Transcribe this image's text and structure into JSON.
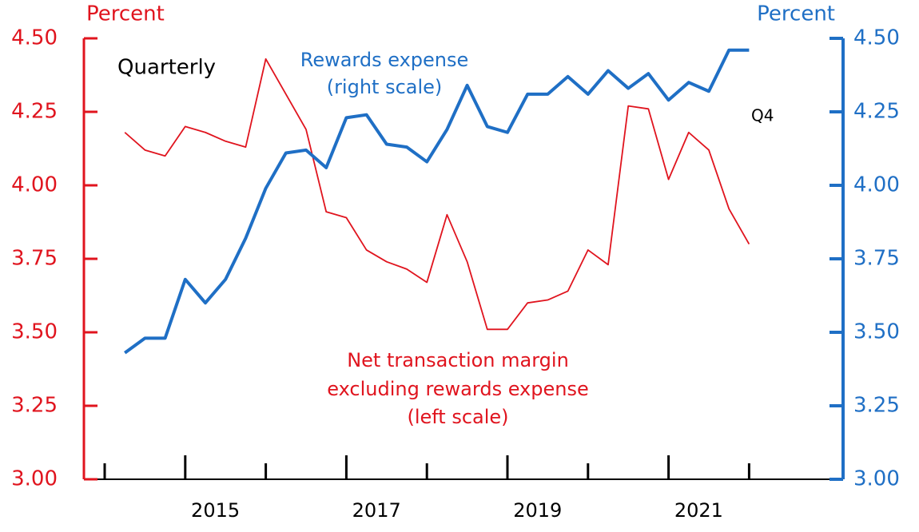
{
  "chart_data": {
    "type": "line",
    "y_label": "Percent",
    "y2_label": "Percent",
    "categories": [
      null,
      null,
      null,
      null,
      null,
      "2015",
      null,
      null,
      null,
      null,
      null,
      null,
      null,
      "2017",
      null,
      null,
      null,
      null,
      null,
      null,
      null,
      "2019",
      null,
      null,
      null,
      null,
      null,
      null,
      null,
      "2021",
      null,
      null
    ],
    "series": [
      {
        "name": [
          "Net transaction margin",
          "excluding rewards expense",
          "(left scale)"
        ],
        "color": "#e0141e",
        "axis": "y",
        "values": [
          4.18,
          4.12,
          4.1,
          4.2,
          4.18,
          4.15,
          4.13,
          4.43,
          4.31,
          4.19,
          3.91,
          3.89,
          3.78,
          3.74,
          3.715,
          3.67,
          3.9,
          3.74,
          3.51,
          3.51,
          3.6,
          3.61,
          3.64,
          3.78,
          3.73,
          4.27,
          4.26,
          4.02,
          4.18,
          4.12,
          3.92,
          3.8
        ]
      },
      {
        "name": [
          "Rewards expense",
          "(right scale)"
        ],
        "color": "#1f6fc5",
        "axis": "y2",
        "values": [
          3.43,
          3.48,
          3.48,
          3.68,
          3.6,
          3.68,
          3.82,
          3.99,
          4.11,
          4.12,
          4.06,
          4.23,
          4.24,
          4.14,
          4.13,
          4.08,
          4.19,
          4.34,
          4.2,
          4.18,
          4.31,
          4.31,
          4.37,
          4.31,
          4.39,
          4.33,
          4.38,
          4.29,
          4.35,
          4.32,
          4.46,
          4.46
        ]
      }
    ],
    "ylim": [
      3.0,
      4.5
    ],
    "yticks": [
      {
        "value": 3.0,
        "label": "3.00"
      },
      {
        "value": 3.25,
        "label": "3.25"
      },
      {
        "value": 3.5,
        "label": "3.50"
      },
      {
        "value": 3.75,
        "label": "3.75"
      },
      {
        "value": 4.0,
        "label": "4.00"
      },
      {
        "value": 4.25,
        "label": "4.25"
      },
      {
        "value": 4.5,
        "label": "4.50"
      }
    ],
    "y2lim": [
      3.0,
      4.5
    ],
    "y2ticks": [
      {
        "value": 3.0,
        "label": "3.00"
      },
      {
        "value": 3.25,
        "label": "3.25"
      },
      {
        "value": 3.5,
        "label": "3.50"
      },
      {
        "value": 3.75,
        "label": "3.75"
      },
      {
        "value": 4.0,
        "label": "4.00"
      },
      {
        "value": 4.25,
        "label": "4.25"
      },
      {
        "value": 4.5,
        "label": "4.50"
      }
    ],
    "annotations": [
      "Quarterly",
      "Q4"
    ]
  }
}
